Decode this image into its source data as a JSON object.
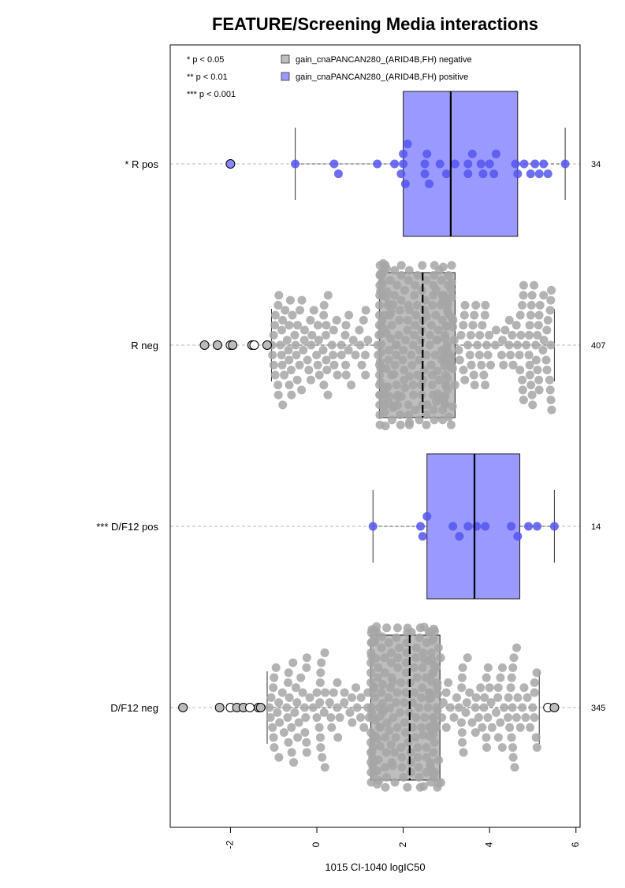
{
  "chart_data": {
    "type": "boxplot",
    "orientation": "horizontal",
    "title": "FEATURE/Screening Media interactions",
    "xlabel": "1015 CI-1040 logIC50",
    "xlim": [
      -3.2,
      6.0
    ],
    "x_ticks": [
      -2,
      0,
      2,
      4,
      6
    ],
    "x_tick_labels": [
      "-2",
      "0",
      "2",
      "4",
      "6"
    ],
    "significance_legend": [
      "* p < 0.05",
      "** p < 0.01",
      "*** p < 0.001"
    ],
    "legend": [
      {
        "label": "gain_cnaPANCAN280_(ARID4B,FH) negative",
        "color": "#bebebe"
      },
      {
        "label": "gain_cnaPANCAN280_(ARID4B,FH) positive",
        "color": "#9999ff"
      }
    ],
    "colors": {
      "negative_box": "#bebebe",
      "positive_box": "#9999ff",
      "negative_points": "#a6a6a6",
      "positive_points": "#5555ee"
    },
    "groups": [
      {
        "label": "* R pos",
        "n": "34",
        "kind": "positive",
        "whisker_low": -0.5,
        "q1": 2.0,
        "median": 3.1,
        "q3": 4.65,
        "whisker_high": 5.75,
        "outliers": [
          -2.0
        ],
        "points": [
          -0.5,
          0.4,
          0.5,
          1.4,
          1.8,
          1.95,
          2.0,
          2.0,
          2.05,
          2.1,
          2.5,
          2.5,
          2.55,
          2.6,
          2.85,
          3.0,
          3.2,
          3.5,
          3.5,
          3.6,
          3.8,
          3.85,
          4.0,
          4.1,
          4.15,
          4.6,
          4.65,
          4.8,
          4.95,
          5.05,
          5.15,
          5.25,
          5.35,
          5.75
        ]
      },
      {
        "label": "R neg",
        "n": "407",
        "kind": "negative",
        "whisker_low": -1.05,
        "q1": 1.45,
        "median": 2.45,
        "q3": 3.2,
        "whisker_high": 5.5,
        "outliers": [
          -2.6,
          -2.3,
          -2.0,
          -1.95,
          -1.5,
          -1.45,
          -1.15
        ],
        "points_summary": "407 points, dense swarm between -1 and 5.5"
      },
      {
        "label": "*** D/F12 pos",
        "n": "14",
        "kind": "positive",
        "whisker_low": 1.3,
        "q1": 2.55,
        "median": 3.65,
        "q3": 4.7,
        "whisker_high": 5.5,
        "outliers": [],
        "points": [
          1.3,
          2.4,
          2.45,
          2.55,
          3.15,
          3.3,
          3.5,
          3.7,
          3.9,
          4.5,
          4.65,
          4.9,
          5.1,
          5.5
        ]
      },
      {
        "label": "D/F12 neg",
        "n": "345",
        "kind": "negative",
        "whisker_low": -1.15,
        "q1": 1.25,
        "median": 2.15,
        "q3": 2.85,
        "whisker_high": 5.15,
        "outliers": [
          -3.1,
          -2.25,
          -2.0,
          -1.85,
          -1.7,
          -1.55,
          -1.35,
          -1.3,
          5.35,
          5.5
        ],
        "points_summary": "345 points, dense swarm between -1.2 and 5.2"
      }
    ]
  }
}
